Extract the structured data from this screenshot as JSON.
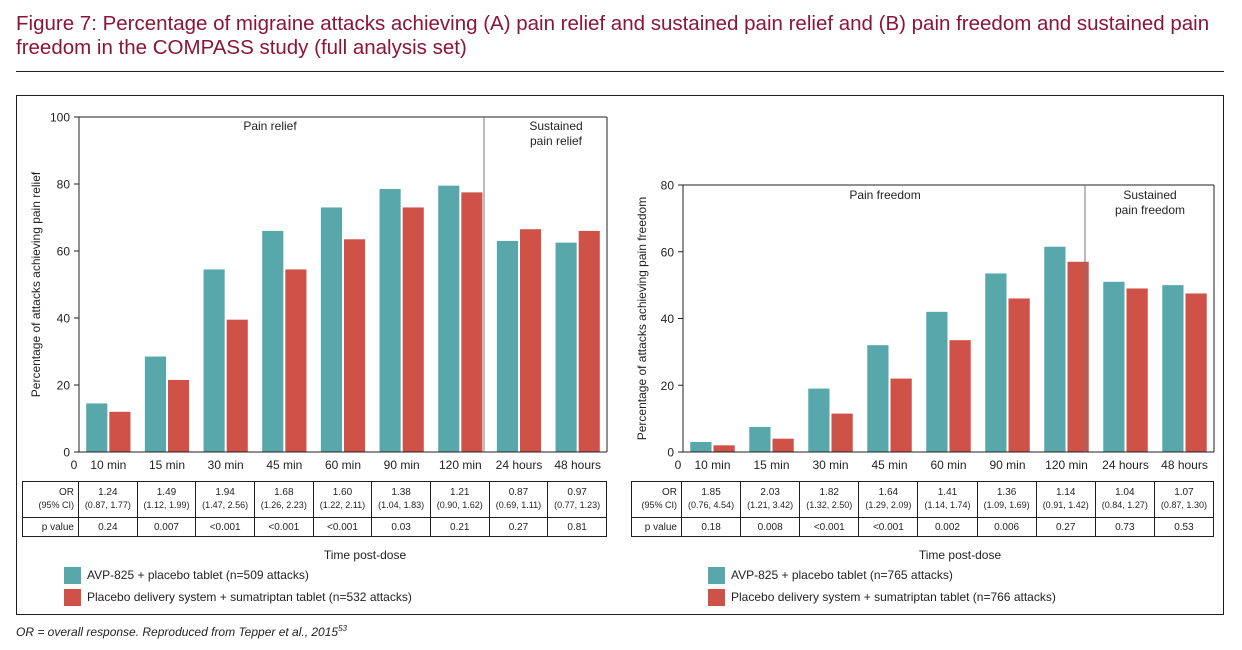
{
  "title": "Figure 7: Percentage of migraine attacks achieving (A) pain relief and sustained pain relief and (B) pain freedom and sustained pain freedom in the COMPASS study (full analysis set)",
  "footnote": {
    "text": "OR = overall response. Reproduced from Tepper et al., 2015",
    "ref": "53"
  },
  "colors": {
    "avp": "#58a7aa",
    "placebo": "#cf5249"
  },
  "chart_data": [
    {
      "type": "bar",
      "id": "A",
      "ylabel": "Percentage of attacks achieving pain relief",
      "xlabel": "Time post-dose",
      "ylim": [
        0,
        100
      ],
      "yticks": [
        0,
        20,
        40,
        60,
        80,
        100
      ],
      "categories": [
        "10 min",
        "15 min",
        "30 min",
        "45 min",
        "60 min",
        "90 min",
        "120 min",
        "24 hours",
        "48 hours"
      ],
      "section_labels": [
        {
          "lines": [
            "Pain relief"
          ]
        },
        {
          "lines": [
            "Sustained",
            "pain relief"
          ]
        }
      ],
      "series": [
        {
          "name": "AVP-825 + placebo tablet (n=509 attacks)",
          "values": [
            14.5,
            28.5,
            54.5,
            66,
            73,
            78.5,
            79.5,
            63,
            62.5
          ]
        },
        {
          "name": "Placebo delivery system + sumatriptan tablet (n=532 attacks)",
          "values": [
            12,
            21.5,
            39.5,
            54.5,
            63.5,
            73,
            77.5,
            66.5,
            66
          ]
        }
      ],
      "table": {
        "or_label": [
          "OR",
          "(95% CI)"
        ],
        "p_label": "p value",
        "or": [
          "1.24",
          "1.49",
          "1.94",
          "1.68",
          "1.60",
          "1.38",
          "1.21",
          "0.87",
          "0.97"
        ],
        "ci": [
          "(0.87, 1.77)",
          "(1.12, 1.99)",
          "(1.47, 2.56)",
          "(1.26, 2.23)",
          "(1.22, 2.11)",
          "(1.04, 1.83)",
          "(0.90, 1.62)",
          "(0.69, 1.11)",
          "(0.77, 1.23)"
        ],
        "p": [
          "0.24",
          "0.007",
          "<0.001",
          "<0.001",
          "<0.001",
          "0.03",
          "0.21",
          "0.27",
          "0.81"
        ]
      }
    },
    {
      "type": "bar",
      "id": "B",
      "ylabel": "Percentage of attacks achieving pain freedom",
      "xlabel": "Time post-dose",
      "ylim": [
        0,
        80
      ],
      "yticks": [
        0,
        20,
        40,
        60,
        80
      ],
      "categories": [
        "10 min",
        "15 min",
        "30 min",
        "45 min",
        "60 min",
        "90 min",
        "120 min",
        "24 hours",
        "48 hours"
      ],
      "section_labels": [
        {
          "lines": [
            "Pain freedom"
          ]
        },
        {
          "lines": [
            "Sustained",
            "pain freedom"
          ]
        }
      ],
      "series": [
        {
          "name": "AVP-825 + placebo tablet (n=765 attacks)",
          "values": [
            3,
            7.5,
            19,
            32,
            42,
            53.5,
            61.5,
            51,
            50
          ]
        },
        {
          "name": "Placebo delivery system + sumatriptan tablet (n=766 attacks)",
          "values": [
            2,
            4,
            11.5,
            22,
            33.5,
            46,
            57,
            49,
            47.5
          ]
        }
      ],
      "table": {
        "or_label": [
          "OR",
          "(95% CI)"
        ],
        "p_label": "p value",
        "or": [
          "1.85",
          "2.03",
          "1.82",
          "1.64",
          "1.41",
          "1.36",
          "1.14",
          "1.04",
          "1.07"
        ],
        "ci": [
          "(0.76, 4.54)",
          "(1.21, 3.42)",
          "(1.32, 2.50)",
          "(1.29, 2.09)",
          "(1.14, 1.74)",
          "(1.09, 1.69)",
          "(0.91, 1.42)",
          "(0.84, 1.27)",
          "(0.87, 1.30)"
        ],
        "p": [
          "0.18",
          "0.008",
          "<0.001",
          "<0.001",
          "0.002",
          "0.006",
          "0.27",
          "0.73",
          "0.53"
        ]
      }
    }
  ]
}
